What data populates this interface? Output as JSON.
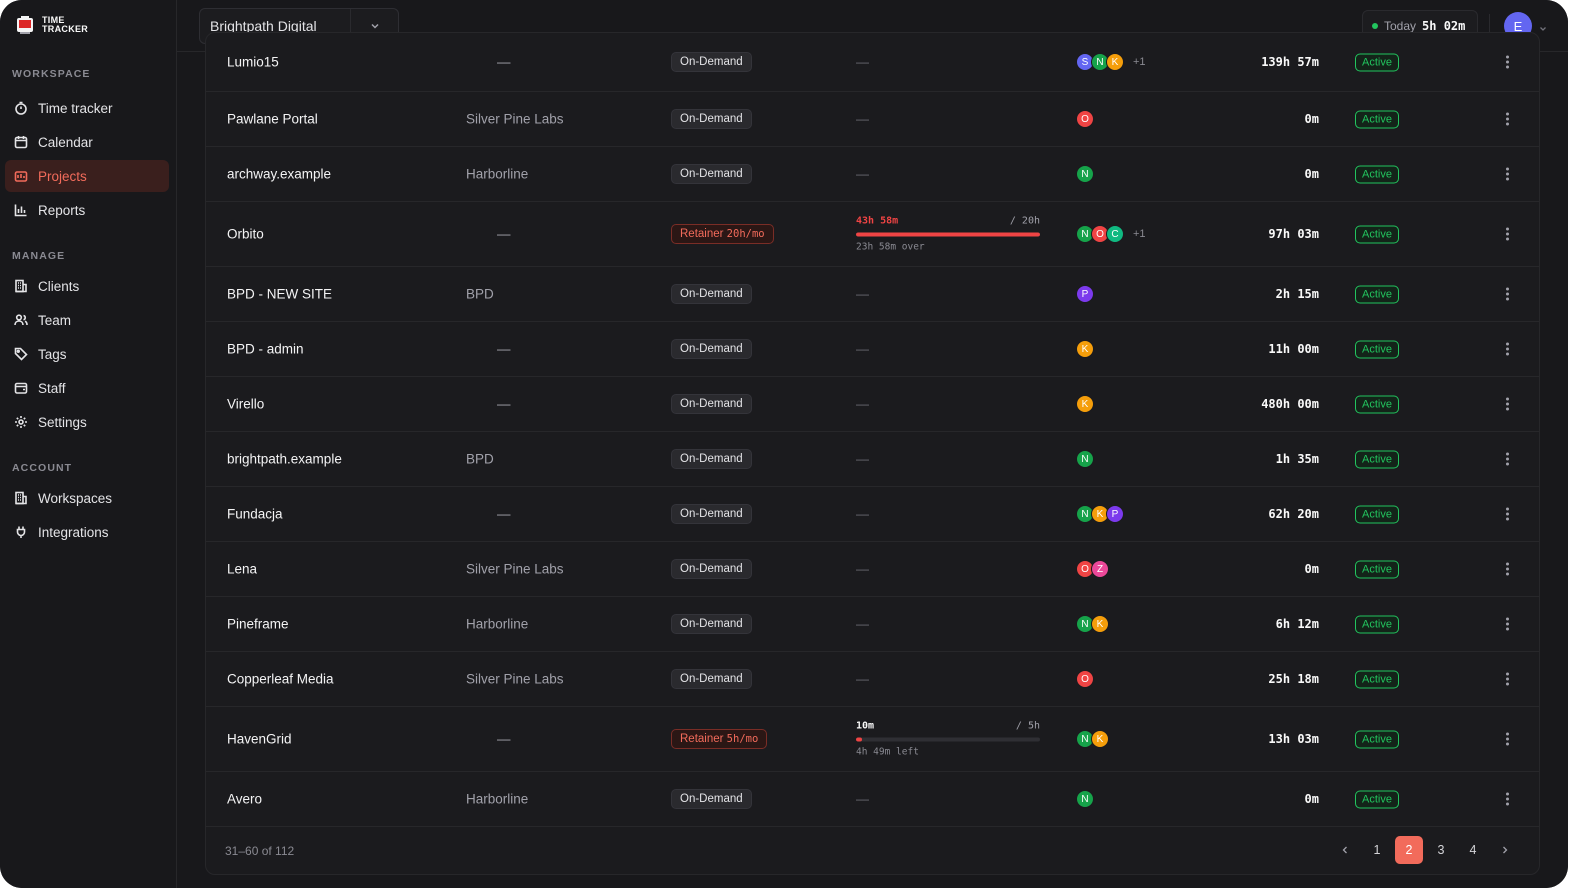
{
  "brand": {
    "line1": "TIME",
    "line2": "TRACKER"
  },
  "sidebar": {
    "sections": [
      {
        "label": "WORKSPACE"
      },
      {
        "label": "MANAGE"
      },
      {
        "label": "ACCOUNT"
      }
    ],
    "items": [
      {
        "label": "Time tracker",
        "icon": "stopwatch-icon"
      },
      {
        "label": "Calendar",
        "icon": "calendar-icon"
      },
      {
        "label": "Projects",
        "icon": "folder-icon",
        "active": true
      },
      {
        "label": "Reports",
        "icon": "bar-chart-icon"
      },
      {
        "label": "Clients",
        "icon": "building-icon"
      },
      {
        "label": "Team",
        "icon": "users-icon"
      },
      {
        "label": "Tags",
        "icon": "tag-icon"
      },
      {
        "label": "Staff",
        "icon": "id-card-icon"
      },
      {
        "label": "Settings",
        "icon": "gear-icon"
      },
      {
        "label": "Workspaces",
        "icon": "building-icon"
      },
      {
        "label": "Integrations",
        "icon": "plug-icon"
      }
    ]
  },
  "header": {
    "workspace": "Brightpath Digital",
    "today_label": "Today",
    "today_value": "5h 02m",
    "user_initial": "E"
  },
  "colors": {
    "accent": "#f26b5b",
    "active_green": "#22c55e",
    "over_red": "#ef4444"
  },
  "projects": [
    {
      "name": "Lumio15",
      "client": "—",
      "billing": "On-Demand",
      "budget": "—",
      "team": [
        "S",
        "N",
        "K"
      ],
      "team_more": "+1",
      "time": "139h 57m",
      "status": "Active"
    },
    {
      "name": "Pawlane Portal",
      "client": "Silver Pine Labs",
      "billing": "On-Demand",
      "budget": "—",
      "team": [
        "O"
      ],
      "time": "0m",
      "status": "Active"
    },
    {
      "name": "archway.example",
      "client": "Harborline",
      "billing": "On-Demand",
      "budget": "—",
      "team": [
        "N"
      ],
      "time": "0m",
      "status": "Active"
    },
    {
      "name": "Orbito",
      "client": "—",
      "billing": "Retainer",
      "billing_rate": "20h/mo",
      "budget_used": "43h 58m",
      "budget_cap": "/ 20h",
      "budget_note": "23h 58m over",
      "budget_fraction": 1.0,
      "team": [
        "N",
        "O",
        "C"
      ],
      "team_more": "+1",
      "time": "97h 03m",
      "status": "Active"
    },
    {
      "name": "BPD - NEW SITE",
      "client": "BPD",
      "billing": "On-Demand",
      "budget": "—",
      "team": [
        "P"
      ],
      "time": "2h 15m",
      "status": "Active"
    },
    {
      "name": "BPD - admin",
      "client": "—",
      "billing": "On-Demand",
      "budget": "—",
      "team": [
        "K"
      ],
      "time": "11h 00m",
      "status": "Active"
    },
    {
      "name": "Virello",
      "client": "—",
      "billing": "On-Demand",
      "budget": "—",
      "team": [
        "K"
      ],
      "time": "480h 00m",
      "status": "Active"
    },
    {
      "name": "brightpath.example",
      "client": "BPD",
      "billing": "On-Demand",
      "budget": "—",
      "team": [
        "N"
      ],
      "time": "1h 35m",
      "status": "Active"
    },
    {
      "name": "Fundacja",
      "client": "—",
      "billing": "On-Demand",
      "budget": "—",
      "team": [
        "N",
        "K",
        "P"
      ],
      "time": "62h 20m",
      "status": "Active"
    },
    {
      "name": "Lena",
      "client": "Silver Pine Labs",
      "billing": "On-Demand",
      "budget": "—",
      "team": [
        "O",
        "Z"
      ],
      "time": "0m",
      "status": "Active"
    },
    {
      "name": "Pineframe",
      "client": "Harborline",
      "billing": "On-Demand",
      "budget": "—",
      "team": [
        "N",
        "K"
      ],
      "time": "6h 12m",
      "status": "Active"
    },
    {
      "name": "Copperleaf Media",
      "client": "Silver Pine Labs",
      "billing": "On-Demand",
      "budget": "—",
      "team": [
        "O"
      ],
      "time": "25h 18m",
      "status": "Active"
    },
    {
      "name": "HavenGrid",
      "client": "—",
      "billing": "Retainer",
      "billing_rate": "5h/mo",
      "budget_used": "10m",
      "budget_cap": "/ 5h",
      "budget_note": "4h 49m left",
      "budget_fraction": 0.033,
      "team": [
        "N",
        "K"
      ],
      "time": "13h 03m",
      "status": "Active"
    },
    {
      "name": "Avero",
      "client": "Harborline",
      "billing": "On-Demand",
      "budget": "—",
      "team": [
        "N"
      ],
      "time": "0m",
      "status": "Active"
    }
  ],
  "avatar_colors": {
    "S": "#6366f1",
    "N": "#16a34a",
    "K": "#f59e0b",
    "O": "#ef4444",
    "C": "#10b981",
    "P": "#7c3aed",
    "Z": "#ec4899"
  },
  "pagination": {
    "range": "31–60 of 112",
    "pages": [
      "1",
      "2",
      "3",
      "4"
    ],
    "current": "2"
  }
}
